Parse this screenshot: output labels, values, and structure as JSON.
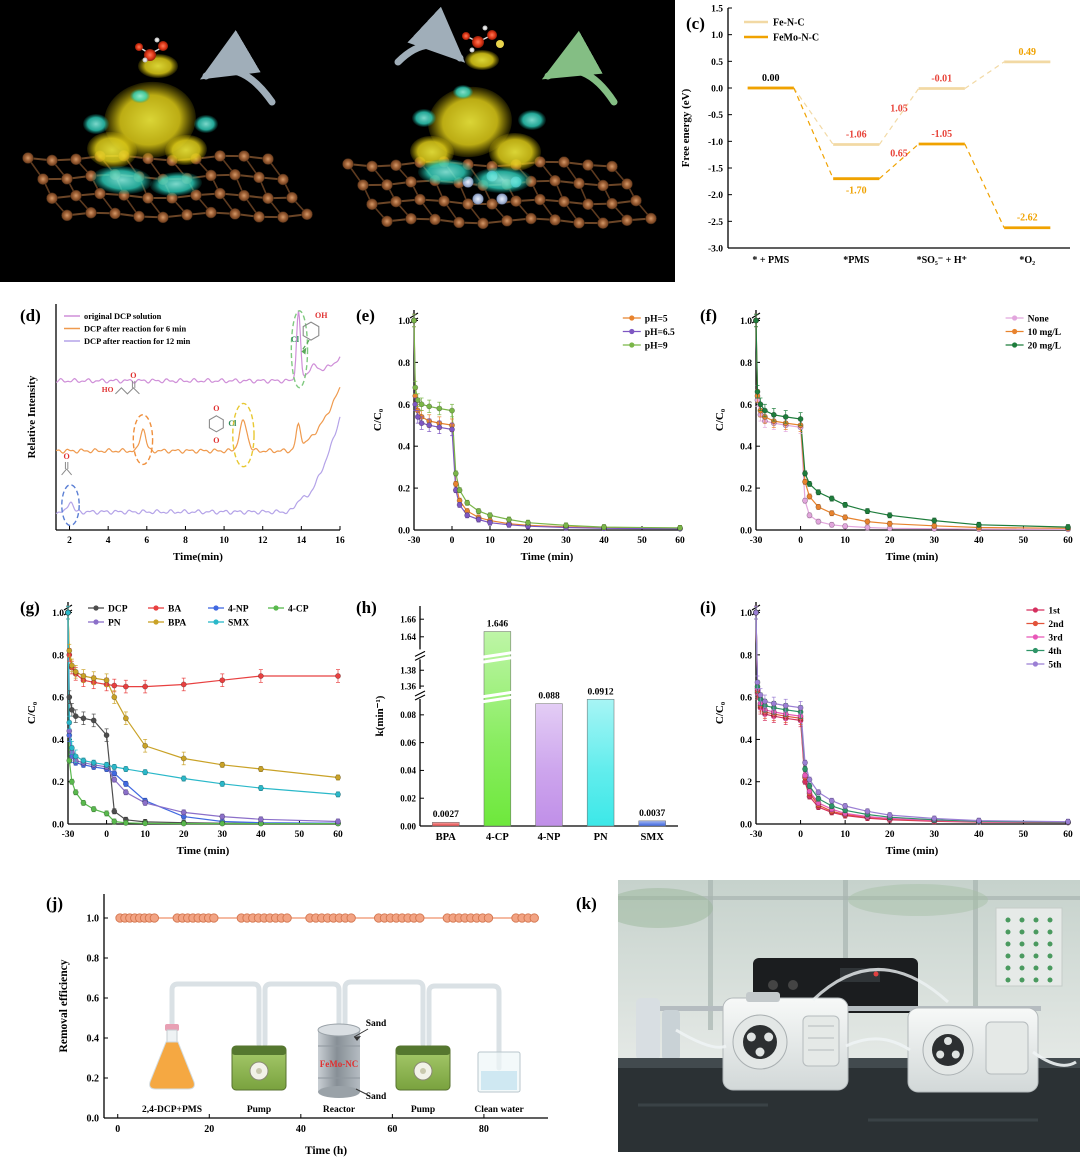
{
  "panels": {
    "c": "(c)",
    "d": "(d)",
    "e": "(e)",
    "f": "(f)",
    "g": "(g)",
    "h": "(h)",
    "i": "(i)",
    "j": "(j)",
    "k": "(k)"
  },
  "chart_data": [
    {
      "id": "c",
      "type": "line",
      "subtype": "energy",
      "ylabel": "Free energy (eV)",
      "ylim": [
        -3.0,
        1.5
      ],
      "categories": [
        "* + PMS",
        "*PMS",
        "*SO₅⁻ + H⁺",
        "*O₂"
      ],
      "series": [
        {
          "name": "Fe-N-C",
          "color": "#f2d9a4",
          "values": [
            0.0,
            -1.06,
            -0.01,
            0.49
          ]
        },
        {
          "name": "FeMo-N-C",
          "color": "#f0a200",
          "values": [
            0.0,
            -1.7,
            -1.05,
            -2.62
          ]
        }
      ],
      "annotations": [
        {
          "text": "0.00",
          "series": 0,
          "stage": 0,
          "pos": "above",
          "color": "#000000"
        },
        {
          "text": "-1.06",
          "series": 0,
          "stage": 1,
          "pos": "above",
          "color": "#e8443a"
        },
        {
          "text": "1.05",
          "series": 0,
          "stage": 1,
          "pos": "mid",
          "color": "#e8443a"
        },
        {
          "text": "-0.01",
          "series": 0,
          "stage": 2,
          "pos": "above",
          "color": "#e8443a"
        },
        {
          "text": "0.49",
          "series": 0,
          "stage": 3,
          "pos": "above",
          "color": "#f0a200"
        },
        {
          "text": "-1.70",
          "series": 1,
          "stage": 1,
          "pos": "below",
          "color": "#f0a200"
        },
        {
          "text": "0.65",
          "series": 1,
          "stage": 1,
          "pos": "mid",
          "color": "#e8443a"
        },
        {
          "text": "-1.05",
          "series": 1,
          "stage": 2,
          "pos": "above",
          "color": "#e8443a"
        },
        {
          "text": "-2.62",
          "series": 1,
          "stage": 3,
          "pos": "above",
          "color": "#f0a200"
        }
      ]
    },
    {
      "id": "d",
      "type": "line",
      "subtype": "chromatogram",
      "xlabel": "Time(min)",
      "ylabel": "Relative Intensity",
      "xlim": [
        1.3,
        16
      ],
      "xticks": [
        2,
        4,
        6,
        8,
        10,
        12,
        14,
        16
      ],
      "traces": [
        {
          "name": "original DCP solution",
          "color": "#cf8fd8",
          "offset": 0.66,
          "end_rise": 0.1,
          "peaks": [
            {
              "x": 13.85,
              "h": 0.3,
              "w": 0.1
            },
            {
              "x": 14.6,
              "h": 0.04,
              "w": 0.25
            }
          ]
        },
        {
          "name": "DCP after reaction for 6 min",
          "color": "#ef9a4e",
          "offset": 0.35,
          "end_rise": 0.28,
          "peaks": [
            {
              "x": 5.8,
              "h": 0.1,
              "w": 0.14
            },
            {
              "x": 11.0,
              "h": 0.13,
              "w": 0.2
            },
            {
              "x": 13.85,
              "h": 0.1,
              "w": 0.12
            }
          ]
        },
        {
          "name": "DCP after reaction for 12 min",
          "color": "#b4a3e8",
          "offset": 0.08,
          "end_rise": 0.42,
          "peaks": [
            {
              "x": 2.05,
              "h": 0.05,
              "w": 0.12
            },
            {
              "x": 13.9,
              "h": 0.03,
              "w": 0.2
            }
          ]
        }
      ],
      "ellipses": [
        {
          "x": 2.05,
          "cyf": 0.11,
          "rx": 0.45,
          "ry": 0.09,
          "color": "#5b7fd4"
        },
        {
          "x": 5.8,
          "cyf": 0.4,
          "rx": 0.5,
          "ry": 0.11,
          "color": "#ef8f3c"
        },
        {
          "x": 11.0,
          "cyf": 0.42,
          "rx": 0.55,
          "ry": 0.14,
          "color": "#e8c832"
        },
        {
          "x": 13.9,
          "cyf": 0.8,
          "rx": 0.42,
          "ry": 0.17,
          "color": "#7fc97f"
        }
      ],
      "structures": [
        {
          "kind": "formaldehyde",
          "x": 1.85,
          "yf": 0.27,
          "o": "O"
        },
        {
          "kind": "chain",
          "x": 5.1,
          "yf": 0.62,
          "ho": "HO",
          "o": "O"
        },
        {
          "kind": "quinone",
          "x": 9.6,
          "yf": 0.47,
          "o1": "O",
          "o2": "O",
          "cl": "Cl"
        },
        {
          "kind": "phenol",
          "x": 14.5,
          "yf": 0.88,
          "oh": "OH",
          "cl": "Cl"
        }
      ]
    },
    {
      "id": "e",
      "type": "line",
      "subtype": "decay",
      "xlabel": "Time (min)",
      "ylabel": "C/C₀",
      "xticks": [
        -30,
        0,
        10,
        20,
        30,
        40,
        50,
        60
      ],
      "x": [
        -30,
        -29,
        -27,
        -24,
        -18,
        -10,
        0,
        1,
        2,
        4,
        7,
        10,
        15,
        20,
        30,
        40,
        60
      ],
      "series": [
        {
          "name": "pH=5",
          "color": "#e8832e",
          "values": [
            1.0,
            0.64,
            0.57,
            0.54,
            0.52,
            0.51,
            0.5,
            0.22,
            0.14,
            0.09,
            0.06,
            0.045,
            0.03,
            0.022,
            0.015,
            0.01,
            0.008
          ]
        },
        {
          "name": "pH=6.5",
          "color": "#7e57c2",
          "values": [
            1.0,
            0.6,
            0.54,
            0.51,
            0.5,
            0.49,
            0.48,
            0.19,
            0.12,
            0.07,
            0.05,
            0.035,
            0.025,
            0.018,
            0.012,
            0.008,
            0.006
          ]
        },
        {
          "name": "pH=9",
          "color": "#7ab648",
          "values": [
            1.0,
            0.68,
            0.62,
            0.6,
            0.59,
            0.58,
            0.57,
            0.27,
            0.19,
            0.13,
            0.09,
            0.07,
            0.05,
            0.035,
            0.022,
            0.014,
            0.01
          ]
        }
      ]
    },
    {
      "id": "f",
      "type": "line",
      "subtype": "decay",
      "xlabel": "Time (min)",
      "ylabel": "C/C₀",
      "xticks": [
        -30,
        0,
        10,
        20,
        30,
        40,
        50,
        60
      ],
      "x": [
        -30,
        -29,
        -27,
        -24,
        -18,
        -10,
        0,
        1,
        2,
        4,
        7,
        10,
        15,
        20,
        30,
        40,
        60
      ],
      "series": [
        {
          "name": "None",
          "color": "#e2a6dd",
          "values": [
            1.0,
            0.62,
            0.55,
            0.52,
            0.51,
            0.5,
            0.49,
            0.14,
            0.07,
            0.04,
            0.025,
            0.018,
            0.012,
            0.008,
            0.006,
            0.004,
            0.003
          ]
        },
        {
          "name": "10 mg/L",
          "color": "#e8832e",
          "values": [
            1.0,
            0.64,
            0.57,
            0.54,
            0.52,
            0.51,
            0.5,
            0.23,
            0.16,
            0.11,
            0.08,
            0.06,
            0.04,
            0.03,
            0.02,
            0.012,
            0.008
          ]
        },
        {
          "name": "20 mg/L",
          "color": "#1e7d3c",
          "values": [
            1.0,
            0.66,
            0.6,
            0.57,
            0.55,
            0.54,
            0.53,
            0.27,
            0.22,
            0.18,
            0.15,
            0.12,
            0.09,
            0.07,
            0.045,
            0.025,
            0.014
          ]
        }
      ]
    },
    {
      "id": "g",
      "type": "line",
      "subtype": "decay",
      "legend_grid": [
        [
          0,
          1,
          2,
          3
        ],
        [
          4,
          5,
          6
        ]
      ],
      "xlabel": "Time (min)",
      "ylabel": "C/C₀",
      "xticks": [
        -30,
        0,
        10,
        20,
        30,
        40,
        50,
        60
      ],
      "x": [
        -30,
        -29,
        -27,
        -24,
        -18,
        -10,
        0,
        2,
        5,
        10,
        20,
        30,
        40,
        60
      ],
      "series": [
        {
          "name": "DCP",
          "color": "#4d4d4d",
          "values": [
            1.0,
            0.6,
            0.54,
            0.51,
            0.5,
            0.49,
            0.42,
            0.06,
            0.02,
            0.01,
            0.006,
            0.004,
            0.003,
            0.003
          ]
        },
        {
          "name": "BA",
          "color": "#e84040",
          "values": [
            1.0,
            0.8,
            0.74,
            0.71,
            0.68,
            0.67,
            0.66,
            0.655,
            0.65,
            0.65,
            0.66,
            0.68,
            0.7,
            0.7
          ]
        },
        {
          "name": "4-NP",
          "color": "#4169e1",
          "values": [
            1.0,
            0.42,
            0.32,
            0.29,
            0.28,
            0.27,
            0.26,
            0.24,
            0.19,
            0.11,
            0.035,
            0.012,
            0.006,
            0.004
          ]
        },
        {
          "name": "4-CP",
          "color": "#59b94d",
          "values": [
            1.0,
            0.3,
            0.2,
            0.15,
            0.1,
            0.07,
            0.05,
            0.012,
            0.005,
            0.003,
            0.002,
            0.002,
            0.002,
            0.002
          ]
        },
        {
          "name": "PN",
          "color": "#8b6fc9",
          "values": [
            1.0,
            0.44,
            0.34,
            0.3,
            0.29,
            0.28,
            0.27,
            0.21,
            0.15,
            0.1,
            0.055,
            0.035,
            0.022,
            0.012
          ]
        },
        {
          "name": "BPA",
          "color": "#c9a227",
          "values": [
            1.0,
            0.82,
            0.75,
            0.72,
            0.7,
            0.69,
            0.68,
            0.6,
            0.5,
            0.37,
            0.31,
            0.28,
            0.26,
            0.22
          ]
        },
        {
          "name": "SMX",
          "color": "#2ab8c9",
          "values": [
            1.0,
            0.48,
            0.36,
            0.32,
            0.3,
            0.29,
            0.28,
            0.27,
            0.26,
            0.245,
            0.215,
            0.19,
            0.17,
            0.14
          ]
        }
      ]
    },
    {
      "id": "h",
      "type": "bar",
      "subtype": "bars",
      "ylabel": "k(min⁻¹)",
      "categories": [
        "BPA",
        "4-CP",
        "4-NP",
        "PN",
        "SMX"
      ],
      "values": [
        0.0027,
        1.646,
        0.088,
        0.0912,
        0.0037
      ],
      "value_labels": [
        "0.0027",
        "1.646",
        "0.088",
        "0.0912",
        "0.0037"
      ],
      "colors": [
        "#e84a4a",
        "#6ee83c",
        "#c08fe8",
        "#3ce8e8",
        "#4169e1"
      ],
      "segments": [
        {
          "domain": [
            0,
            0.095
          ],
          "frac": 0.6,
          "ticks": [
            0.0,
            0.02,
            0.04,
            0.06,
            0.08
          ]
        },
        {
          "domain": [
            1.35,
            1.4
          ],
          "frac": 0.18,
          "ticks": [
            1.36,
            1.38
          ]
        },
        {
          "domain": [
            1.62,
            1.675
          ],
          "frac": 0.22,
          "ticks": [
            1.64,
            1.66
          ]
        }
      ]
    },
    {
      "id": "i",
      "type": "line",
      "subtype": "decay",
      "xlabel": "Time (min)",
      "ylabel": "C/C₀",
      "xticks": [
        -30,
        0,
        10,
        20,
        30,
        40,
        50,
        60
      ],
      "x": [
        -30,
        -29,
        -27,
        -24,
        -18,
        -10,
        0,
        1,
        2,
        4,
        7,
        10,
        15,
        20,
        30,
        40,
        60
      ],
      "series": [
        {
          "name": "1st",
          "color": "#d5305f",
          "values": [
            1.0,
            0.62,
            0.55,
            0.52,
            0.51,
            0.5,
            0.49,
            0.2,
            0.13,
            0.08,
            0.055,
            0.04,
            0.028,
            0.02,
            0.013,
            0.009,
            0.007
          ]
        },
        {
          "name": "2nd",
          "color": "#e2533b",
          "values": [
            1.0,
            0.63,
            0.56,
            0.53,
            0.52,
            0.51,
            0.5,
            0.22,
            0.145,
            0.09,
            0.06,
            0.045,
            0.032,
            0.023,
            0.015,
            0.01,
            0.008
          ]
        },
        {
          "name": "3rd",
          "color": "#e858b8",
          "values": [
            1.0,
            0.64,
            0.57,
            0.54,
            0.53,
            0.52,
            0.51,
            0.23,
            0.155,
            0.1,
            0.07,
            0.05,
            0.035,
            0.026,
            0.017,
            0.011,
            0.008
          ]
        },
        {
          "name": "4th",
          "color": "#2e9467",
          "values": [
            1.0,
            0.65,
            0.59,
            0.56,
            0.55,
            0.54,
            0.53,
            0.26,
            0.18,
            0.12,
            0.085,
            0.065,
            0.045,
            0.032,
            0.02,
            0.013,
            0.009
          ]
        },
        {
          "name": "5th",
          "color": "#9b7fd4",
          "values": [
            1.0,
            0.67,
            0.61,
            0.58,
            0.57,
            0.56,
            0.55,
            0.29,
            0.21,
            0.15,
            0.11,
            0.085,
            0.06,
            0.042,
            0.026,
            0.016,
            0.011
          ]
        }
      ]
    },
    {
      "id": "j",
      "type": "scatter",
      "subtype": "removal",
      "xlabel": "Time (h)",
      "ylabel": "Removal efficiency",
      "xlim": [
        -3,
        94
      ],
      "xticks": [
        0,
        20,
        40,
        60,
        80
      ],
      "yticks": [
        0.0,
        0.2,
        0.4,
        0.6,
        0.8,
        1.0
      ],
      "value": 1.0,
      "color": "#f2a383",
      "edge": "#d4764f",
      "clusters": [
        [
          0.5,
          8,
          8
        ],
        [
          13,
          21,
          8
        ],
        [
          27,
          37,
          9
        ],
        [
          42,
          51,
          8
        ],
        [
          57,
          66,
          8
        ],
        [
          72,
          81,
          8
        ],
        [
          87,
          91,
          4
        ]
      ],
      "schematic": {
        "flask": "2,4-DCP+PMS",
        "pump1": "Pump",
        "reactor": "Reactor",
        "pump2": "Pump",
        "beaker": "Clean water",
        "sand_top": "Sand",
        "sand_bottom": "Sand",
        "catalyst": "FeMo-NC",
        "catalyst_color": "#e03030"
      }
    }
  ]
}
